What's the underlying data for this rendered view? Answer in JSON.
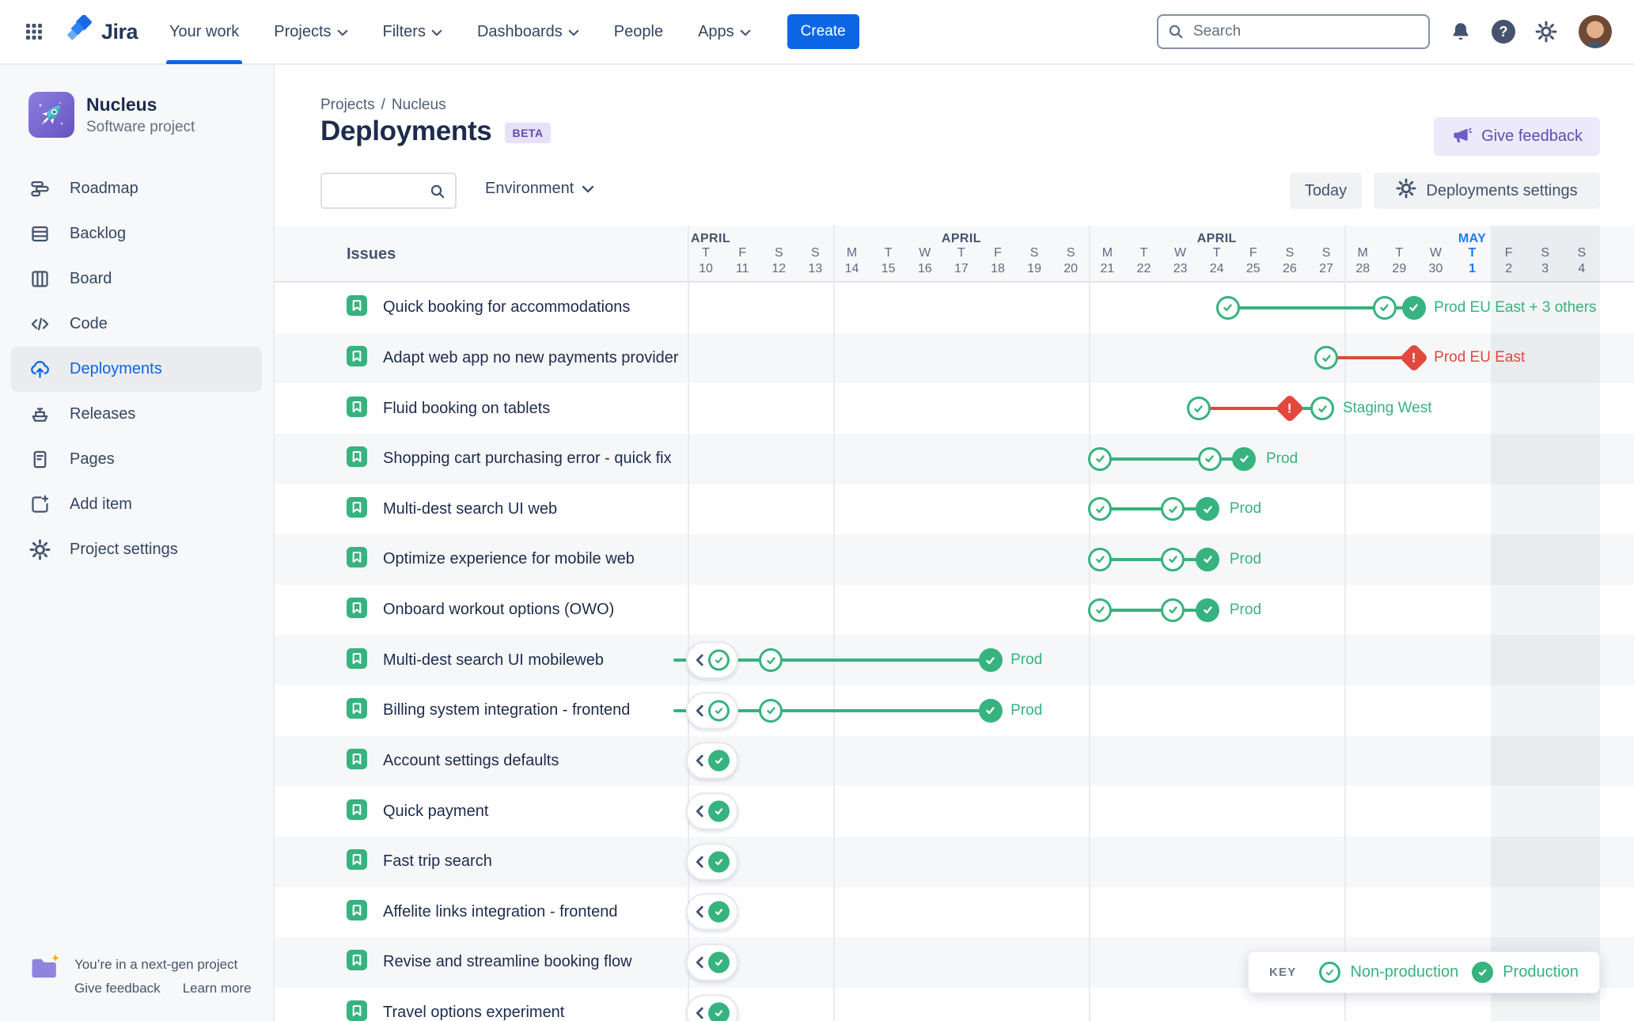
{
  "colors": {
    "green": "#36B37E",
    "red": "#E2483D",
    "brand_blue": "#0C66E4",
    "today_blue": "#1D7AFC",
    "purple": "#6554C0"
  },
  "topbar": {
    "product": "Jira",
    "nav": [
      {
        "label": "Your work",
        "active": true
      },
      {
        "label": "Projects",
        "menu": true
      },
      {
        "label": "Filters",
        "menu": true
      },
      {
        "label": "Dashboards",
        "menu": true
      },
      {
        "label": "People"
      },
      {
        "label": "Apps",
        "menu": true
      }
    ],
    "create_label": "Create",
    "search_placeholder": "Search",
    "icons": [
      "notifications-icon",
      "help-icon",
      "settings-icon",
      "profile-avatar"
    ]
  },
  "sidebar": {
    "project_name": "Nucleus",
    "project_type": "Software project",
    "project_icon": "rocket-icon",
    "items": [
      {
        "label": "Roadmap",
        "icon": "roadmap-icon"
      },
      {
        "label": "Backlog",
        "icon": "backlog-icon"
      },
      {
        "label": "Board",
        "icon": "board-icon"
      },
      {
        "label": "Code",
        "icon": "code-icon"
      },
      {
        "label": "Deployments",
        "icon": "deployments-icon",
        "active": true
      },
      {
        "label": "Releases",
        "icon": "releases-icon"
      },
      {
        "label": "Pages",
        "icon": "pages-icon"
      },
      {
        "label": "Add item",
        "icon": "add-item-icon"
      },
      {
        "label": "Project settings",
        "icon": "project-settings-icon"
      }
    ],
    "footer": {
      "line1": "You’re in a next-gen project",
      "give_feedback": "Give feedback",
      "learn_more": "Learn more",
      "icon": "folder-sparkle-icon"
    }
  },
  "header": {
    "breadcrumb": {
      "project": "Projects",
      "separator": "/",
      "current": "Nucleus"
    },
    "title": "Deployments",
    "badge": "BETA",
    "give_feedback": "Give feedback"
  },
  "controls": {
    "search_value": "",
    "environment": "Environment",
    "today": "Today",
    "settings": "Deployments settings"
  },
  "legend": {
    "key": "KEY",
    "non_production": "Non-production",
    "production": "Production"
  },
  "chart_data": {
    "type": "gantt-deployments",
    "issues_header": "Issues",
    "weeks": [
      {
        "month": "APRIL",
        "align": "left",
        "days": [
          [
            "T",
            10
          ],
          [
            "F",
            11
          ],
          [
            "S",
            12
          ],
          [
            "S",
            13
          ]
        ]
      },
      {
        "month": "APRIL",
        "days": [
          [
            "M",
            14
          ],
          [
            "T",
            15
          ],
          [
            "W",
            16
          ],
          [
            "T",
            17
          ],
          [
            "F",
            18
          ],
          [
            "S",
            19
          ],
          [
            "S",
            20
          ]
        ]
      },
      {
        "month": "APRIL",
        "days": [
          [
            "M",
            21
          ],
          [
            "T",
            22
          ],
          [
            "W",
            23
          ],
          [
            "T",
            24
          ],
          [
            "F",
            25
          ],
          [
            "S",
            26
          ],
          [
            "S",
            27
          ]
        ]
      },
      {
        "month": "MAY",
        "accent": true,
        "days": [
          [
            "M",
            28
          ],
          [
            "T",
            29
          ],
          [
            "W",
            30
          ],
          [
            "T",
            1
          ],
          [
            "F",
            2
          ],
          [
            "S",
            3
          ],
          [
            "S",
            4
          ]
        ]
      }
    ],
    "today": {
      "month": "MAY",
      "dow": "T",
      "date": 1
    },
    "future_shade_from_day": 22,
    "rows": [
      {
        "issue": "Quick booking for accommodations",
        "pipeline": {
          "nodes": [
            [
              "outline",
              14.3
            ],
            [
              "outline",
              18.6
            ],
            [
              "stack",
              19.4
            ]
          ],
          "segments": [
            [
              14.3,
              18.6,
              "green"
            ],
            [
              18.6,
              19.4,
              "green"
            ]
          ],
          "label": {
            "text": "Prod EU East + 3 others",
            "color": "green",
            "day": 19.95
          }
        }
      },
      {
        "issue": "Adapt web app no new payments provider",
        "pipeline": {
          "nodes": [
            [
              "outline",
              17.0
            ],
            [
              "alert",
              19.4
            ]
          ],
          "segments": [
            [
              17.0,
              19.4,
              "red"
            ]
          ],
          "label": {
            "text": "Prod EU East",
            "color": "red",
            "day": 19.95
          }
        }
      },
      {
        "issue": "Fluid booking on tablets",
        "pipeline": {
          "nodes": [
            [
              "outline",
              13.5
            ],
            [
              "alert",
              16.0
            ],
            [
              "outline",
              16.9
            ]
          ],
          "segments": [
            [
              13.5,
              16.0,
              "red"
            ],
            [
              16.0,
              16.9,
              "green"
            ]
          ],
          "label": {
            "text": "Staging West",
            "color": "green",
            "day": 17.45
          }
        }
      },
      {
        "issue": "Shopping cart purchasing error - quick fix",
        "pipeline": {
          "nodes": [
            [
              "outline",
              10.8
            ],
            [
              "outline",
              13.8
            ],
            [
              "filled",
              14.75
            ]
          ],
          "segments": [
            [
              10.8,
              13.8,
              "green"
            ],
            [
              13.8,
              14.75,
              "green"
            ]
          ],
          "label": {
            "text": "Prod",
            "color": "green",
            "day": 15.35
          }
        }
      },
      {
        "issue": "Multi-dest search UI web",
        "pipeline": {
          "nodes": [
            [
              "outline",
              10.8
            ],
            [
              "outline",
              12.8
            ],
            [
              "filled",
              13.75
            ]
          ],
          "segments": [
            [
              10.8,
              12.8,
              "green"
            ],
            [
              12.8,
              13.75,
              "green"
            ]
          ],
          "label": {
            "text": "Prod",
            "color": "green",
            "day": 14.35
          }
        }
      },
      {
        "issue": "Optimize experience for mobile web",
        "pipeline": {
          "nodes": [
            [
              "outline",
              10.8
            ],
            [
              "outline",
              12.8
            ],
            [
              "filled",
              13.75
            ]
          ],
          "segments": [
            [
              10.8,
              12.8,
              "green"
            ],
            [
              12.8,
              13.75,
              "green"
            ]
          ],
          "label": {
            "text": "Prod",
            "color": "green",
            "day": 14.35
          }
        }
      },
      {
        "issue": "Onboard workout options (OWO)",
        "pipeline": {
          "nodes": [
            [
              "outline",
              10.8
            ],
            [
              "outline",
              12.8
            ],
            [
              "stack",
              13.75
            ]
          ],
          "segments": [
            [
              10.8,
              12.8,
              "green"
            ],
            [
              12.8,
              13.75,
              "green"
            ]
          ],
          "label": {
            "text": "Prod",
            "color": "green",
            "day": 14.35
          }
        }
      },
      {
        "issue": "Multi-dest search UI mobileweb",
        "pipeline": {
          "pill": "outline",
          "pill_stub": true,
          "nodes": [
            [
              "outline",
              1.78
            ],
            [
              "filled",
              7.8
            ]
          ],
          "segments": [
            [
              1.78,
              7.8,
              "green"
            ]
          ],
          "label": {
            "text": "Prod",
            "color": "green",
            "day": 8.35
          }
        }
      },
      {
        "issue": "Billing system integration - frontend",
        "pipeline": {
          "pill": "outline",
          "pill_stub": true,
          "nodes": [
            [
              "outline",
              1.78
            ],
            [
              "filled",
              7.8
            ]
          ],
          "segments": [
            [
              1.78,
              7.8,
              "green"
            ]
          ],
          "label": {
            "text": "Prod",
            "color": "green",
            "day": 8.35
          }
        }
      },
      {
        "issue": "Account settings defaults",
        "pipeline": {
          "pill": "filled"
        }
      },
      {
        "issue": "Quick payment",
        "pipeline": {
          "pill": "filled"
        }
      },
      {
        "issue": "Fast trip search",
        "pipeline": {
          "pill": "filled"
        }
      },
      {
        "issue": "Affelite links integration - frontend",
        "pipeline": {
          "pill": "filled"
        }
      },
      {
        "issue": "Revise and streamline booking flow",
        "pipeline": {
          "pill": "filled"
        }
      },
      {
        "issue": "Travel options experiment",
        "pipeline": {
          "pill": "filled"
        }
      }
    ]
  }
}
